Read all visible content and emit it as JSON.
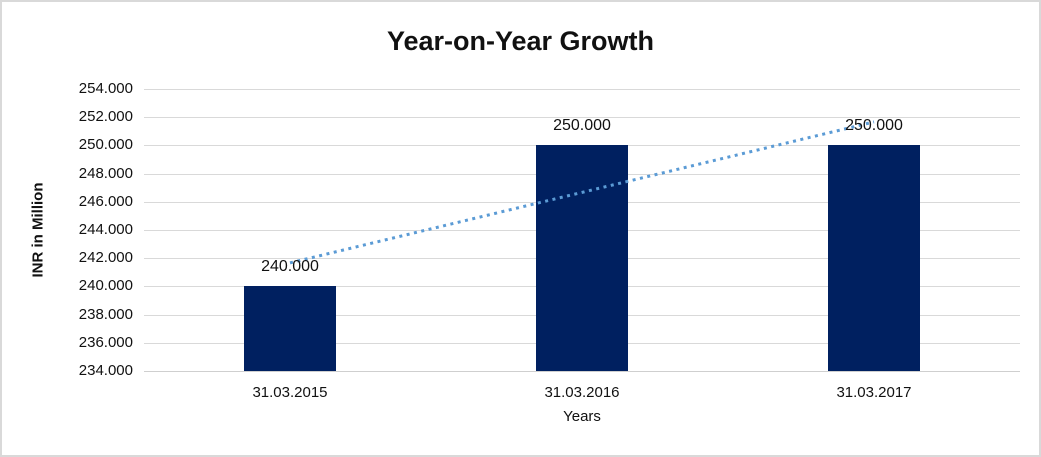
{
  "chart_data": {
    "type": "bar",
    "title": "Year-on-Year Growth",
    "xlabel": "Years",
    "ylabel": "INR in Million",
    "categories": [
      "31.03.2015",
      "31.03.2016",
      "31.03.2017"
    ],
    "values": [
      240.0,
      250.0,
      250.0
    ],
    "data_labels": [
      "240.000",
      "250.000",
      "250.000"
    ],
    "ylim": [
      234.0,
      254.0
    ],
    "ytick_step": 2.0,
    "ytick_labels": [
      "254.000",
      "252.000",
      "250.000",
      "248.000",
      "246.000",
      "244.000",
      "242.000",
      "240.000",
      "238.000",
      "236.000",
      "234.000"
    ],
    "grid": true,
    "legend": "none",
    "colors": {
      "bar": "#002060",
      "trendline": "#5b9bd5",
      "gridline": "#d9d9d9",
      "axis_line": "#cfcfcf",
      "text": "#111111",
      "frame_border": "#d9d9d9"
    },
    "trendline": {
      "type": "linear",
      "style": "dotted",
      "color": "#5b9bd5",
      "start_value": 241.667,
      "end_value": 251.667
    }
  }
}
